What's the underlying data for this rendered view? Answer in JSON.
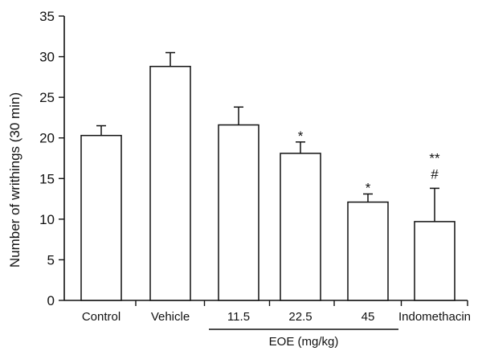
{
  "chart_data": {
    "type": "bar",
    "categories": [
      "Control",
      "Vehicle",
      "11.5",
      "22.5",
      "45",
      "Indomethacin"
    ],
    "values": [
      20.3,
      28.8,
      21.6,
      18.1,
      12.1,
      9.7
    ],
    "errors": [
      1.2,
      1.7,
      2.2,
      1.4,
      1.0,
      4.1
    ],
    "annotations": [
      {
        "category": "22.5",
        "marks": [
          "*"
        ]
      },
      {
        "category": "45",
        "marks": [
          "*"
        ]
      },
      {
        "category": "Indomethacin",
        "marks": [
          "**",
          "#"
        ]
      }
    ],
    "ylabel": "Number of writhings (30 min)",
    "ylim": [
      0,
      35
    ],
    "yticks": [
      0,
      5,
      10,
      15,
      20,
      25,
      30,
      35
    ],
    "group_label": {
      "text": "EOE (mg/kg)",
      "categories": [
        "11.5",
        "22.5",
        "45"
      ]
    },
    "grid": false,
    "legend": "none"
  }
}
